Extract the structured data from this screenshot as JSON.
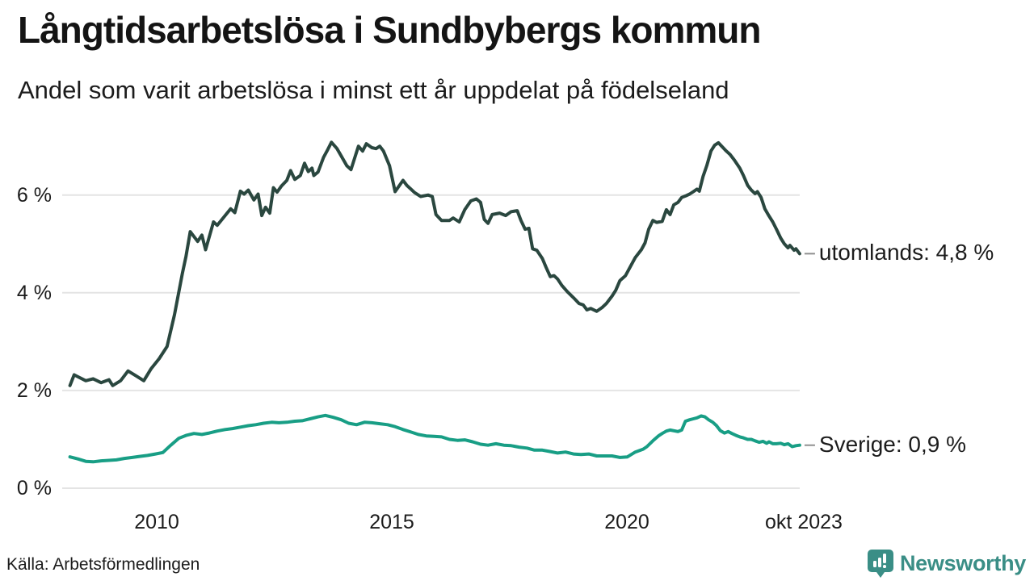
{
  "title": "Långtidsarbetslösa i Sundbybergs kommun",
  "subtitle": "Andel som varit arbetslösa i minst ett år uppdelat på födelseland",
  "source": "Källa: Arbetsförmedlingen",
  "logo": {
    "text": "Newsworthy",
    "icon": "newsworthy-pin-icon",
    "color": "#3a8e86"
  },
  "colors": {
    "series_utomlands": "#2a473f",
    "series_sverige": "#189e85",
    "gridline": "#e4e4e4",
    "label_dash": "#8f8f8f",
    "text": "#1c1c1c"
  },
  "chart_data": {
    "type": "line",
    "title": "Långtidsarbetslösa i Sundbybergs kommun",
    "subtitle": "Andel som varit arbetslösa i minst ett år uppdelat på födelseland",
    "unit": "percent",
    "x_axis": {
      "ticks": [
        "2010",
        "2015",
        "2020",
        "okt 2023"
      ],
      "tick_years": [
        2010,
        2015,
        2020,
        2023.79
      ],
      "range": [
        2008.05,
        2023.83
      ],
      "grid": false
    },
    "y_axis": {
      "ticks": [
        "0 %",
        "2 %",
        "4 %",
        "6 %"
      ],
      "tick_values": [
        0,
        2,
        4,
        6
      ],
      "range": [
        0,
        7.3
      ],
      "grid": true
    },
    "legend_position": "end-of-line-labels",
    "series": [
      {
        "name": "utomlands",
        "label": "utomlands: 4,8 %",
        "last_value_label": "4,8 %",
        "color": "#2a473f",
        "points": [
          [
            2008.08,
            2.1
          ],
          [
            2008.17,
            2.32
          ],
          [
            2008.25,
            2.28
          ],
          [
            2008.42,
            2.2
          ],
          [
            2008.58,
            2.24
          ],
          [
            2008.75,
            2.16
          ],
          [
            2008.92,
            2.22
          ],
          [
            2009.0,
            2.1
          ],
          [
            2009.17,
            2.2
          ],
          [
            2009.33,
            2.4
          ],
          [
            2009.5,
            2.3
          ],
          [
            2009.67,
            2.2
          ],
          [
            2009.83,
            2.45
          ],
          [
            2010.0,
            2.65
          ],
          [
            2010.17,
            2.9
          ],
          [
            2010.33,
            3.55
          ],
          [
            2010.5,
            4.4
          ],
          [
            2010.58,
            4.75
          ],
          [
            2010.67,
            5.25
          ],
          [
            2010.83,
            5.05
          ],
          [
            2010.92,
            5.18
          ],
          [
            2011.0,
            4.88
          ],
          [
            2011.17,
            5.45
          ],
          [
            2011.25,
            5.38
          ],
          [
            2011.42,
            5.58
          ],
          [
            2011.54,
            5.72
          ],
          [
            2011.63,
            5.64
          ],
          [
            2011.75,
            6.08
          ],
          [
            2011.83,
            6.02
          ],
          [
            2011.92,
            6.1
          ],
          [
            2012.04,
            5.9
          ],
          [
            2012.13,
            6.02
          ],
          [
            2012.21,
            5.58
          ],
          [
            2012.29,
            5.75
          ],
          [
            2012.38,
            5.63
          ],
          [
            2012.46,
            6.15
          ],
          [
            2012.54,
            6.06
          ],
          [
            2012.63,
            6.18
          ],
          [
            2012.75,
            6.3
          ],
          [
            2012.83,
            6.5
          ],
          [
            2012.92,
            6.32
          ],
          [
            2013.04,
            6.4
          ],
          [
            2013.13,
            6.65
          ],
          [
            2013.21,
            6.48
          ],
          [
            2013.29,
            6.55
          ],
          [
            2013.33,
            6.4
          ],
          [
            2013.42,
            6.47
          ],
          [
            2013.54,
            6.77
          ],
          [
            2013.63,
            6.93
          ],
          [
            2013.71,
            7.08
          ],
          [
            2013.83,
            6.95
          ],
          [
            2013.92,
            6.8
          ],
          [
            2014.04,
            6.6
          ],
          [
            2014.13,
            6.52
          ],
          [
            2014.29,
            7.0
          ],
          [
            2014.38,
            6.9
          ],
          [
            2014.46,
            7.05
          ],
          [
            2014.58,
            6.97
          ],
          [
            2014.67,
            6.95
          ],
          [
            2014.75,
            7.0
          ],
          [
            2014.83,
            6.9
          ],
          [
            2014.96,
            6.6
          ],
          [
            2015.08,
            6.07
          ],
          [
            2015.25,
            6.3
          ],
          [
            2015.33,
            6.2
          ],
          [
            2015.5,
            6.05
          ],
          [
            2015.63,
            5.97
          ],
          [
            2015.79,
            6.0
          ],
          [
            2015.88,
            5.97
          ],
          [
            2015.96,
            5.6
          ],
          [
            2016.08,
            5.48
          ],
          [
            2016.25,
            5.48
          ],
          [
            2016.33,
            5.53
          ],
          [
            2016.46,
            5.45
          ],
          [
            2016.58,
            5.7
          ],
          [
            2016.71,
            5.88
          ],
          [
            2016.83,
            5.92
          ],
          [
            2016.92,
            5.85
          ],
          [
            2017.0,
            5.5
          ],
          [
            2017.08,
            5.42
          ],
          [
            2017.17,
            5.6
          ],
          [
            2017.33,
            5.63
          ],
          [
            2017.46,
            5.58
          ],
          [
            2017.58,
            5.66
          ],
          [
            2017.71,
            5.68
          ],
          [
            2017.79,
            5.48
          ],
          [
            2017.88,
            5.3
          ],
          [
            2017.96,
            5.32
          ],
          [
            2018.04,
            4.9
          ],
          [
            2018.13,
            4.87
          ],
          [
            2018.25,
            4.7
          ],
          [
            2018.33,
            4.52
          ],
          [
            2018.42,
            4.33
          ],
          [
            2018.5,
            4.35
          ],
          [
            2018.58,
            4.28
          ],
          [
            2018.67,
            4.15
          ],
          [
            2018.79,
            4.02
          ],
          [
            2018.92,
            3.9
          ],
          [
            2019.04,
            3.78
          ],
          [
            2019.13,
            3.75
          ],
          [
            2019.21,
            3.65
          ],
          [
            2019.29,
            3.68
          ],
          [
            2019.42,
            3.62
          ],
          [
            2019.54,
            3.7
          ],
          [
            2019.63,
            3.78
          ],
          [
            2019.75,
            3.93
          ],
          [
            2019.83,
            4.05
          ],
          [
            2019.92,
            4.25
          ],
          [
            2020.04,
            4.35
          ],
          [
            2020.17,
            4.58
          ],
          [
            2020.25,
            4.72
          ],
          [
            2020.38,
            4.88
          ],
          [
            2020.46,
            5.02
          ],
          [
            2020.54,
            5.3
          ],
          [
            2020.63,
            5.48
          ],
          [
            2020.71,
            5.44
          ],
          [
            2020.83,
            5.46
          ],
          [
            2020.92,
            5.7
          ],
          [
            2021.0,
            5.6
          ],
          [
            2021.08,
            5.8
          ],
          [
            2021.17,
            5.85
          ],
          [
            2021.25,
            5.95
          ],
          [
            2021.33,
            5.98
          ],
          [
            2021.42,
            6.02
          ],
          [
            2021.5,
            6.07
          ],
          [
            2021.58,
            6.12
          ],
          [
            2021.63,
            6.08
          ],
          [
            2021.71,
            6.38
          ],
          [
            2021.79,
            6.6
          ],
          [
            2021.88,
            6.9
          ],
          [
            2021.96,
            7.02
          ],
          [
            2022.04,
            7.07
          ],
          [
            2022.13,
            6.98
          ],
          [
            2022.21,
            6.9
          ],
          [
            2022.29,
            6.83
          ],
          [
            2022.38,
            6.72
          ],
          [
            2022.5,
            6.55
          ],
          [
            2022.58,
            6.4
          ],
          [
            2022.67,
            6.2
          ],
          [
            2022.75,
            6.1
          ],
          [
            2022.83,
            6.03
          ],
          [
            2022.88,
            6.07
          ],
          [
            2022.96,
            5.95
          ],
          [
            2023.04,
            5.72
          ],
          [
            2023.13,
            5.57
          ],
          [
            2023.21,
            5.45
          ],
          [
            2023.29,
            5.3
          ],
          [
            2023.38,
            5.12
          ],
          [
            2023.46,
            5.0
          ],
          [
            2023.54,
            4.92
          ],
          [
            2023.58,
            4.97
          ],
          [
            2023.67,
            4.87
          ],
          [
            2023.71,
            4.9
          ],
          [
            2023.79,
            4.8
          ]
        ]
      },
      {
        "name": "Sverige",
        "label": "Sverige: 0,9 %",
        "last_value_label": "0,9 %",
        "color": "#189e85",
        "points": [
          [
            2008.08,
            0.64
          ],
          [
            2008.25,
            0.6
          ],
          [
            2008.42,
            0.55
          ],
          [
            2008.58,
            0.54
          ],
          [
            2008.75,
            0.56
          ],
          [
            2008.92,
            0.57
          ],
          [
            2009.08,
            0.58
          ],
          [
            2009.25,
            0.61
          ],
          [
            2009.42,
            0.63
          ],
          [
            2009.58,
            0.65
          ],
          [
            2009.75,
            0.67
          ],
          [
            2009.92,
            0.7
          ],
          [
            2010.08,
            0.73
          ],
          [
            2010.25,
            0.88
          ],
          [
            2010.42,
            1.02
          ],
          [
            2010.58,
            1.08
          ],
          [
            2010.75,
            1.12
          ],
          [
            2010.92,
            1.1
          ],
          [
            2011.08,
            1.13
          ],
          [
            2011.25,
            1.17
          ],
          [
            2011.42,
            1.2
          ],
          [
            2011.58,
            1.22
          ],
          [
            2011.75,
            1.25
          ],
          [
            2011.92,
            1.28
          ],
          [
            2012.08,
            1.3
          ],
          [
            2012.25,
            1.33
          ],
          [
            2012.42,
            1.35
          ],
          [
            2012.58,
            1.34
          ],
          [
            2012.75,
            1.35
          ],
          [
            2012.92,
            1.37
          ],
          [
            2013.08,
            1.38
          ],
          [
            2013.25,
            1.42
          ],
          [
            2013.42,
            1.46
          ],
          [
            2013.58,
            1.49
          ],
          [
            2013.75,
            1.45
          ],
          [
            2013.92,
            1.4
          ],
          [
            2014.08,
            1.33
          ],
          [
            2014.25,
            1.3
          ],
          [
            2014.42,
            1.35
          ],
          [
            2014.58,
            1.34
          ],
          [
            2014.75,
            1.32
          ],
          [
            2014.92,
            1.3
          ],
          [
            2015.08,
            1.26
          ],
          [
            2015.25,
            1.2
          ],
          [
            2015.42,
            1.15
          ],
          [
            2015.58,
            1.1
          ],
          [
            2015.75,
            1.07
          ],
          [
            2015.92,
            1.06
          ],
          [
            2016.08,
            1.05
          ],
          [
            2016.25,
            1.0
          ],
          [
            2016.42,
            0.98
          ],
          [
            2016.58,
            0.99
          ],
          [
            2016.75,
            0.95
          ],
          [
            2016.92,
            0.9
          ],
          [
            2017.08,
            0.88
          ],
          [
            2017.25,
            0.91
          ],
          [
            2017.42,
            0.88
          ],
          [
            2017.58,
            0.87
          ],
          [
            2017.75,
            0.84
          ],
          [
            2017.92,
            0.82
          ],
          [
            2018.08,
            0.78
          ],
          [
            2018.25,
            0.78
          ],
          [
            2018.42,
            0.75
          ],
          [
            2018.58,
            0.72
          ],
          [
            2018.75,
            0.74
          ],
          [
            2018.92,
            0.7
          ],
          [
            2019.08,
            0.69
          ],
          [
            2019.25,
            0.7
          ],
          [
            2019.42,
            0.66
          ],
          [
            2019.58,
            0.66
          ],
          [
            2019.75,
            0.66
          ],
          [
            2019.92,
            0.63
          ],
          [
            2020.08,
            0.64
          ],
          [
            2020.25,
            0.74
          ],
          [
            2020.42,
            0.8
          ],
          [
            2020.5,
            0.85
          ],
          [
            2020.63,
            0.97
          ],
          [
            2020.75,
            1.07
          ],
          [
            2020.83,
            1.12
          ],
          [
            2020.92,
            1.17
          ],
          [
            2021.0,
            1.19
          ],
          [
            2021.17,
            1.16
          ],
          [
            2021.25,
            1.19
          ],
          [
            2021.33,
            1.37
          ],
          [
            2021.42,
            1.4
          ],
          [
            2021.5,
            1.42
          ],
          [
            2021.58,
            1.44
          ],
          [
            2021.67,
            1.48
          ],
          [
            2021.75,
            1.46
          ],
          [
            2021.83,
            1.4
          ],
          [
            2021.92,
            1.35
          ],
          [
            2022.0,
            1.28
          ],
          [
            2022.08,
            1.18
          ],
          [
            2022.17,
            1.13
          ],
          [
            2022.25,
            1.16
          ],
          [
            2022.33,
            1.12
          ],
          [
            2022.42,
            1.08
          ],
          [
            2022.5,
            1.05
          ],
          [
            2022.58,
            1.03
          ],
          [
            2022.67,
            1.0
          ],
          [
            2022.75,
            1.0
          ],
          [
            2022.83,
            0.97
          ],
          [
            2022.92,
            0.94
          ],
          [
            2023.0,
            0.96
          ],
          [
            2023.08,
            0.92
          ],
          [
            2023.13,
            0.95
          ],
          [
            2023.21,
            0.91
          ],
          [
            2023.29,
            0.91
          ],
          [
            2023.38,
            0.92
          ],
          [
            2023.46,
            0.89
          ],
          [
            2023.54,
            0.91
          ],
          [
            2023.63,
            0.85
          ],
          [
            2023.71,
            0.87
          ],
          [
            2023.79,
            0.88
          ]
        ]
      }
    ]
  }
}
